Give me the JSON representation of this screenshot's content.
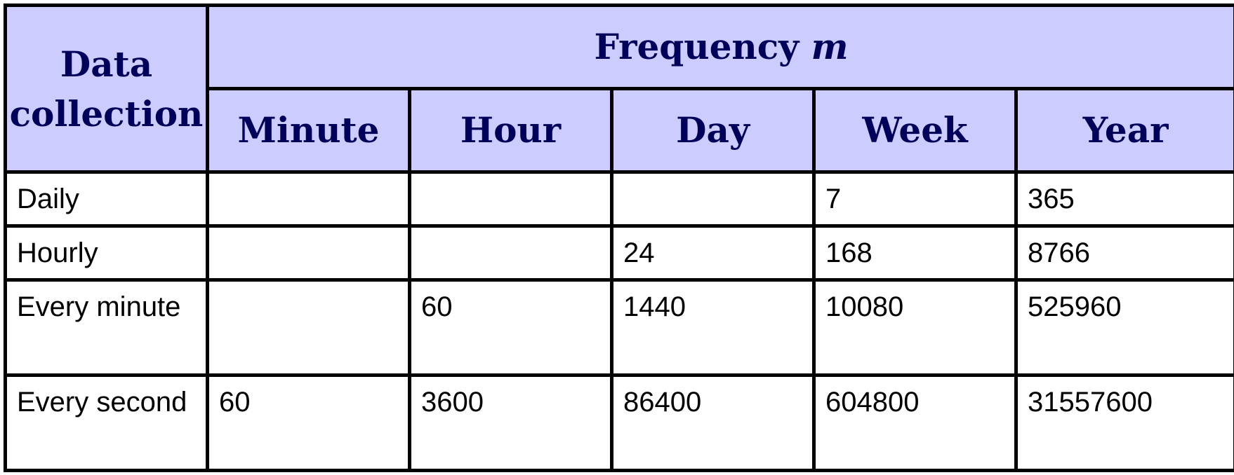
{
  "table": {
    "corner_header": "Data collection",
    "group_header": {
      "label": "Frequency",
      "variable": "m"
    },
    "columns": [
      "Minute",
      "Hour",
      "Day",
      "Week",
      "Year"
    ],
    "rows": [
      {
        "label": "Daily",
        "values": [
          "",
          "",
          "",
          "7",
          "365"
        ]
      },
      {
        "label": "Hourly",
        "values": [
          "",
          "",
          "24",
          "168",
          "8766"
        ]
      },
      {
        "label": "Every minute",
        "values": [
          "",
          "60",
          "1440",
          "10080",
          "525960"
        ]
      },
      {
        "label": "Every second",
        "values": [
          "60",
          "3600",
          "86400",
          "604800",
          "31557600"
        ]
      }
    ],
    "colors": {
      "header_background": "#ccccff",
      "header_text": "#00005a",
      "border": "#000000"
    }
  }
}
